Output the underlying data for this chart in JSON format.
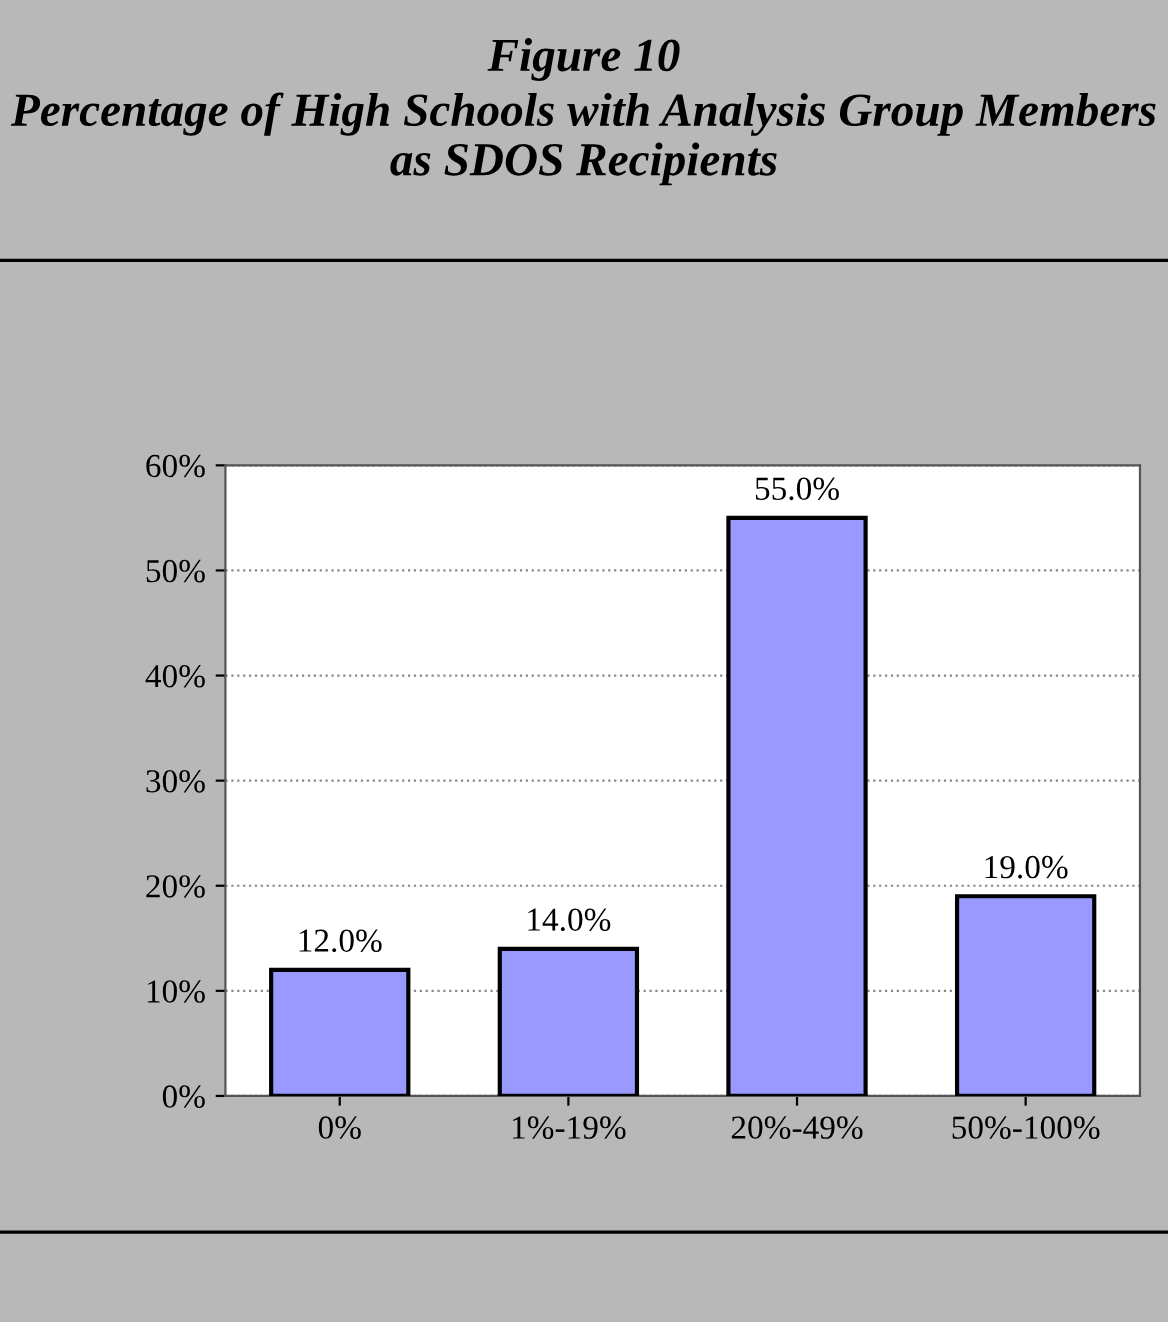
{
  "chart_data": {
    "type": "bar",
    "title": "Figure 10",
    "subtitle": "Percentage of High Schools with Analysis Group Members as SDOS Recipients",
    "categories": [
      "0%",
      "1%-19%",
      "20%-49%",
      "50%-100%"
    ],
    "values": [
      12,
      14,
      55,
      19
    ],
    "color": "#9999ff",
    "value_labels": [
      "12.0%",
      "14.0%",
      "55.0%",
      "19.0%"
    ],
    "ylim": [
      0,
      60
    ],
    "yticks": [
      {
        "value": 0,
        "label": "0%"
      },
      {
        "value": 10,
        "label": "10%"
      },
      {
        "value": 20,
        "label": "20%"
      },
      {
        "value": 30,
        "label": "30%"
      },
      {
        "value": 40,
        "label": "40%"
      },
      {
        "value": 50,
        "label": "50%"
      },
      {
        "value": 60,
        "label": "60%"
      }
    ],
    "grid": "y"
  }
}
